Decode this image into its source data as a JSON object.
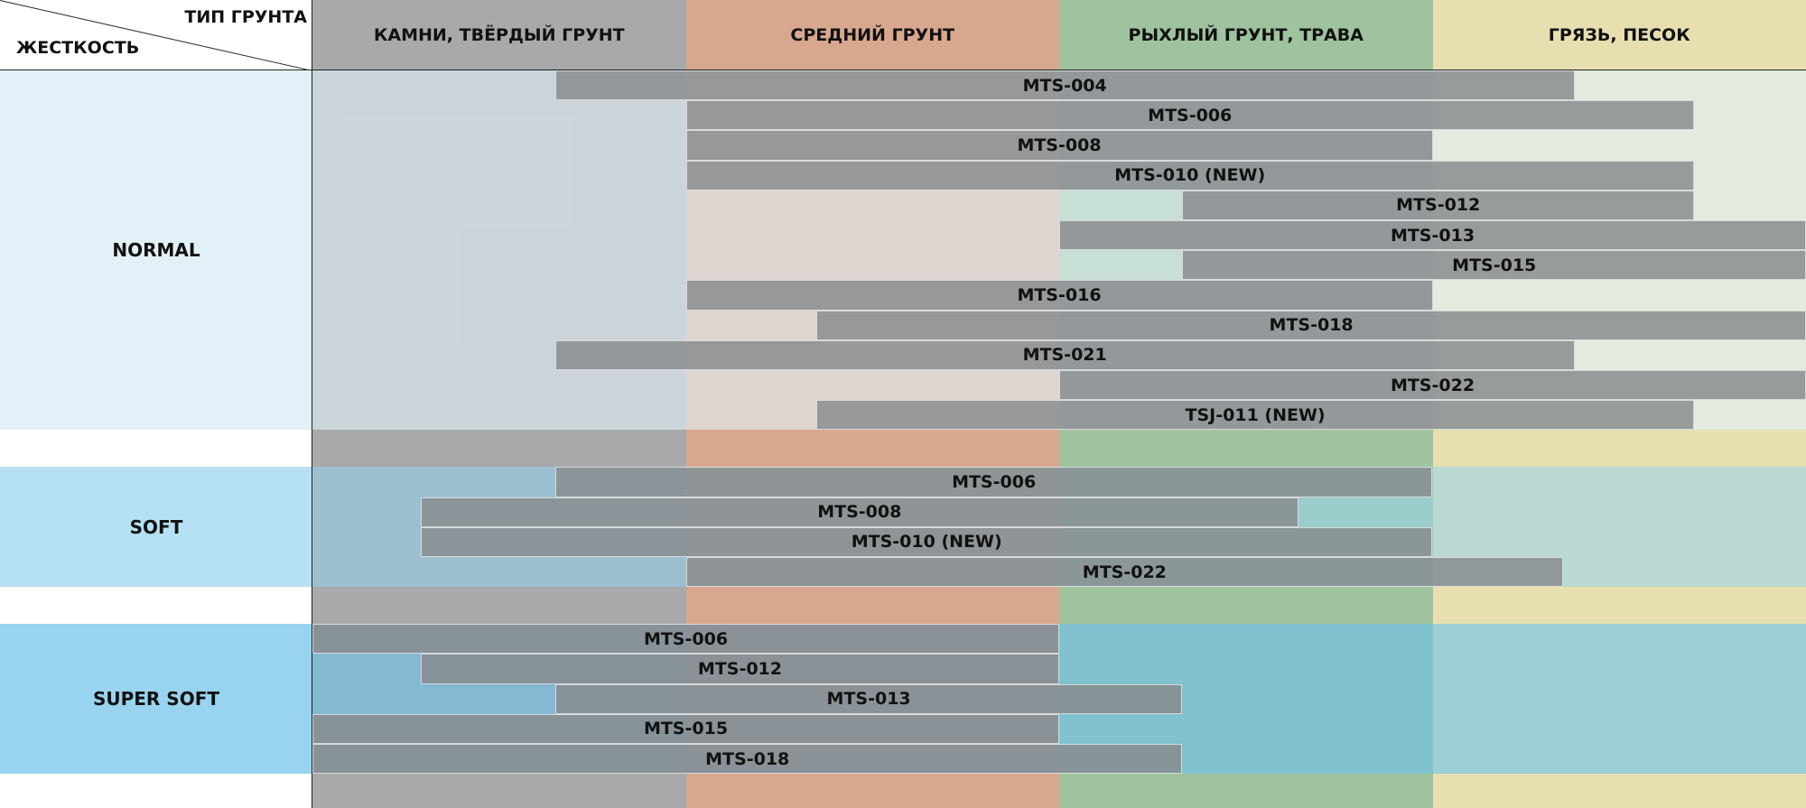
{
  "header": {
    "column_title": "ТИП ГРУНТА",
    "row_title": "ЖЕСТКОСТЬ",
    "columns": [
      "КАМНИ, ТВЁРДЫЙ ГРУНТ",
      "СРЕДНИЙ ГРУНТ",
      "РЫХЛЫЙ ГРУНТ, ТРАВА",
      "ГРЯЗЬ, ПЕСОК"
    ]
  },
  "groups": [
    {
      "name": "NORMAL",
      "tires": [
        {
          "name": "MTS-004",
          "range": [
            0.65,
            3.38
          ]
        },
        {
          "name": "MTS-006",
          "range": [
            1,
            3.7
          ]
        },
        {
          "name": "MTS-008",
          "range": [
            1,
            3
          ]
        },
        {
          "name": "MTS-010 (NEW)",
          "range": [
            1,
            3.7
          ]
        },
        {
          "name": "MTS-012",
          "range": [
            2.33,
            3.7
          ]
        },
        {
          "name": "MTS-013",
          "range": [
            2,
            4
          ]
        },
        {
          "name": "MTS-015",
          "range": [
            2.33,
            4
          ]
        },
        {
          "name": "MTS-016",
          "range": [
            1,
            3
          ]
        },
        {
          "name": "MTS-018",
          "range": [
            1.35,
            4
          ]
        },
        {
          "name": "MTS-021",
          "range": [
            0.65,
            3.38
          ]
        },
        {
          "name": "MTS-022",
          "range": [
            2,
            4
          ]
        },
        {
          "name": "TSJ-011 (NEW)",
          "range": [
            1.35,
            3.7
          ]
        }
      ]
    },
    {
      "name": "SOFT",
      "tires": [
        {
          "name": "MTS-006",
          "range": [
            0.65,
            3
          ]
        },
        {
          "name": "MTS-008",
          "range": [
            0.29,
            2.64
          ]
        },
        {
          "name": "MTS-010 (NEW)",
          "range": [
            0.29,
            3
          ]
        },
        {
          "name": "MTS-022",
          "range": [
            1,
            3.35
          ]
        }
      ]
    },
    {
      "name": "SUPER SOFT",
      "tires": [
        {
          "name": "MTS-006",
          "range": [
            0,
            2
          ]
        },
        {
          "name": "MTS-012",
          "range": [
            0.29,
            2
          ]
        },
        {
          "name": "MTS-013",
          "range": [
            0.65,
            2.33
          ]
        },
        {
          "name": "MTS-015",
          "range": [
            0,
            2
          ]
        },
        {
          "name": "MTS-018",
          "range": [
            0,
            2.33
          ]
        }
      ]
    }
  ]
}
